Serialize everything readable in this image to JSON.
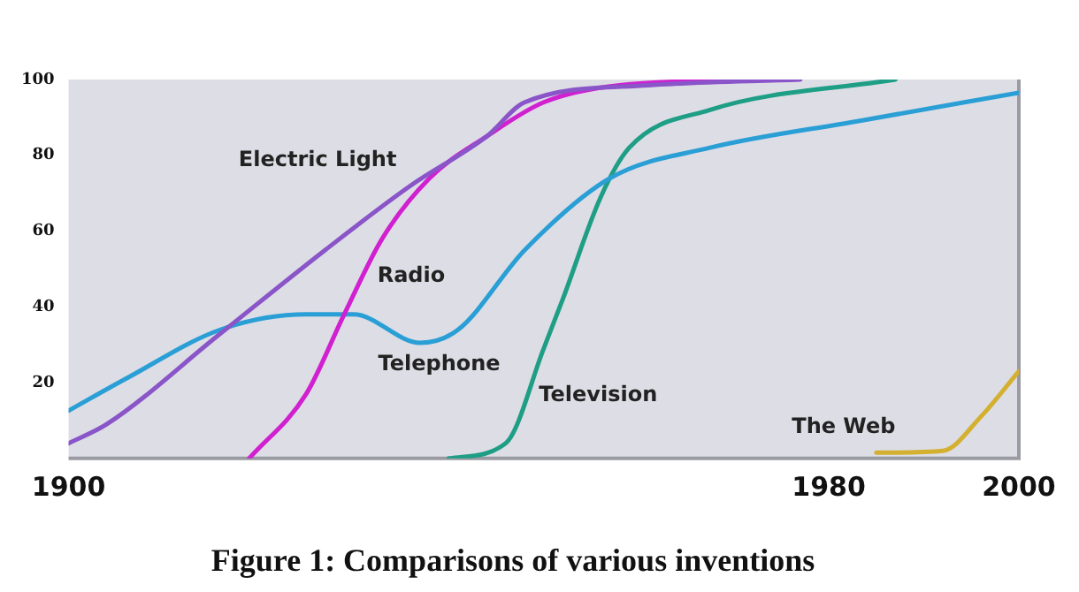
{
  "chart_data": {
    "type": "line",
    "title": "Figure 1: Comparisons of various inventions",
    "xlim": [
      1900,
      2000
    ],
    "xticks": [
      1900,
      1980,
      2000
    ],
    "ylim": [
      0,
      100
    ],
    "yticks": [
      20,
      40,
      60,
      80,
      100
    ],
    "grid": false,
    "legend": false,
    "marker": "none",
    "line_style": "solid",
    "series": [
      {
        "name": "Electric Light",
        "color": "#8a55c8",
        "x": [
          1900,
          1904,
          1916,
          1927,
          1936,
          1944,
          1948,
          1961,
          1977
        ],
        "values": [
          4,
          9,
          33,
          55,
          72,
          85,
          94,
          98.5,
          100
        ]
      },
      {
        "name": "Radio",
        "color": "#d020d0",
        "x": [
          1919,
          1925,
          1929,
          1933,
          1938,
          1944,
          1950,
          1958,
          1974
        ],
        "values": [
          0,
          17,
          38,
          58,
          74,
          85,
          94,
          98.5,
          100
        ]
      },
      {
        "name": "Telephone",
        "color": "#2a9fd6",
        "x": [
          1900,
          1906,
          1916,
          1925,
          1930,
          1937,
          1941,
          1948,
          1957,
          1967.5,
          1983,
          2000
        ],
        "values": [
          12.6,
          21,
          34,
          38,
          38,
          30.5,
          34,
          55,
          74,
          82,
          89,
          96.5
        ]
      },
      {
        "name": "Television",
        "color": "#1f9e86",
        "x": [
          1940,
          1946,
          1950,
          1952,
          1956,
          1959,
          1967.5,
          1987
        ],
        "values": [
          0,
          4,
          29,
          42,
          69,
          82,
          92,
          100
        ]
      },
      {
        "name": "The Web",
        "color": "#d4b030",
        "x": [
          1985,
          1992,
          1996,
          2000
        ],
        "values": [
          1.5,
          2,
          11,
          23
        ]
      }
    ]
  }
}
